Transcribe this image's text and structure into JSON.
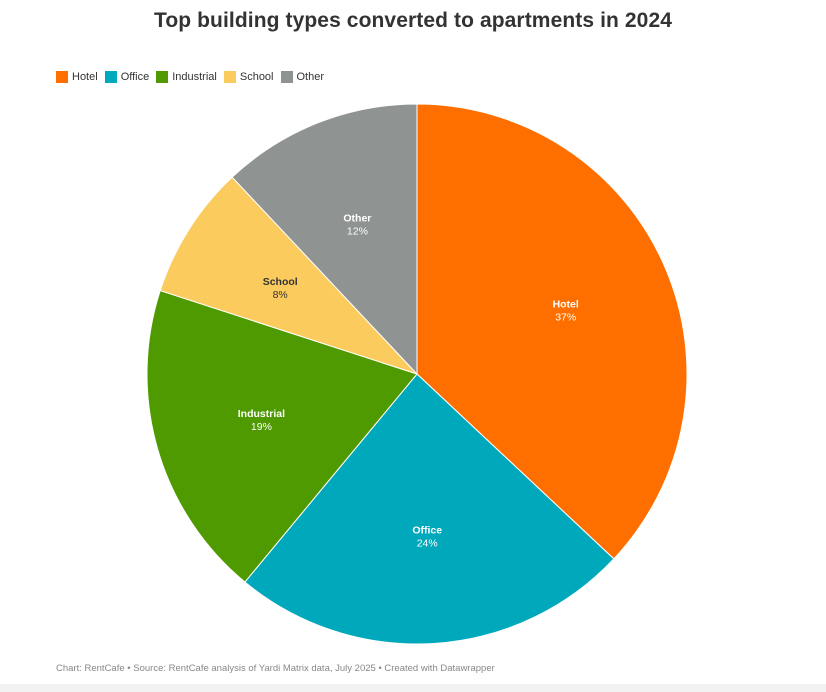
{
  "chart_data": {
    "type": "pie",
    "title": "Top building types converted to apartments in 2024",
    "legend_position": "top-left",
    "slices": [
      {
        "label": "Hotel",
        "value": 37,
        "value_label": "37%",
        "color": "#ff6f00",
        "text_color": "#ffffff"
      },
      {
        "label": "Office",
        "value": 24,
        "value_label": "24%",
        "color": "#00a8bb",
        "text_color": "#ffffff"
      },
      {
        "label": "Industrial",
        "value": 19,
        "value_label": "19%",
        "color": "#4f9a00",
        "text_color": "#ffffff"
      },
      {
        "label": "School",
        "value": 8,
        "value_label": "8%",
        "color": "#fccb5d",
        "text_color": "#333333"
      },
      {
        "label": "Other",
        "value": 12,
        "value_label": "12%",
        "color": "#8f9391",
        "text_color": "#ffffff"
      }
    ]
  },
  "footer": {
    "text": "Chart: RentCafe • Source: RentCafe analysis of Yardi Matrix data, July 2025  • Created with Datawrapper"
  }
}
